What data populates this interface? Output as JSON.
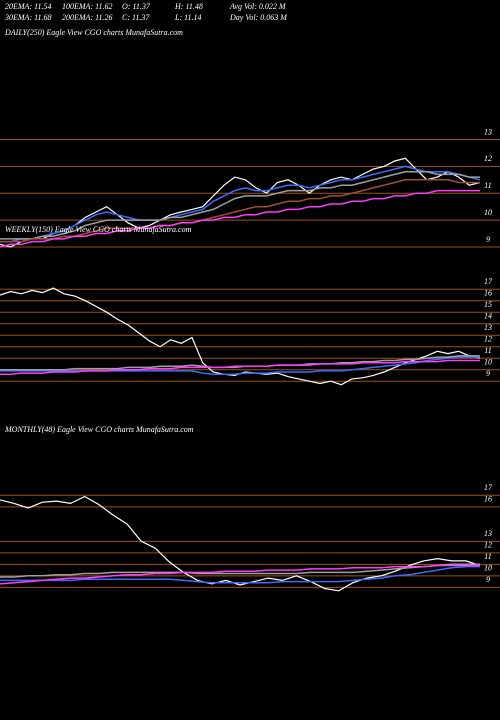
{
  "header": {
    "rows": [
      [
        "20EMA: 11.54",
        "100EMA: 11.62",
        "O: 11.37",
        "H: 11.48",
        "Avg Vol: 0.022  M"
      ],
      [
        "30EMA: 11.68",
        "200EMA: 11.26",
        "C: 11.37",
        "L: 11.14",
        "Day Vol: 0.063  M"
      ]
    ]
  },
  "chart_data": [
    {
      "type": "line",
      "title": "DAILY(250) Eagle  View  CGO charts MunafaSutra.com",
      "ylim": [
        8.7,
        14.1
      ],
      "yticks": [
        13,
        12,
        11,
        10,
        9
      ],
      "grid": true,
      "grid_color": "#9a5218",
      "series": [
        {
          "color": "#ffffff",
          "values": [
            9.1,
            9.0,
            9.2,
            9.3,
            9.3,
            9.5,
            9.6,
            9.8,
            10.1,
            10.3,
            10.5,
            10.2,
            9.9,
            9.7,
            9.8,
            10.0,
            10.2,
            10.3,
            10.4,
            10.5,
            10.9,
            11.3,
            11.6,
            11.5,
            11.2,
            11.0,
            11.4,
            11.5,
            11.3,
            11.0,
            11.3,
            11.5,
            11.6,
            11.5,
            11.7,
            11.9,
            12.0,
            12.2,
            12.3,
            11.9,
            11.5,
            11.6,
            11.8,
            11.6,
            11.3,
            11.4
          ]
        },
        {
          "color": "#3a6cff",
          "values": [
            9.2,
            9.2,
            9.3,
            9.3,
            9.4,
            9.5,
            9.6,
            9.8,
            10.0,
            10.2,
            10.3,
            10.2,
            10.1,
            10.0,
            10.0,
            10.0,
            10.1,
            10.2,
            10.3,
            10.4,
            10.7,
            10.9,
            11.1,
            11.2,
            11.1,
            11.1,
            11.2,
            11.3,
            11.3,
            11.2,
            11.3,
            11.4,
            11.5,
            11.5,
            11.6,
            11.7,
            11.8,
            11.9,
            12.0,
            11.9,
            11.8,
            11.8,
            11.8,
            11.7,
            11.6,
            11.5
          ]
        },
        {
          "color": "#a0a0a0",
          "values": [
            9.3,
            9.3,
            9.3,
            9.3,
            9.4,
            9.4,
            9.5,
            9.6,
            9.8,
            9.9,
            10.0,
            10.0,
            10.0,
            10.0,
            10.0,
            10.0,
            10.1,
            10.1,
            10.2,
            10.3,
            10.4,
            10.6,
            10.8,
            10.9,
            10.9,
            10.9,
            11.0,
            11.1,
            11.1,
            11.1,
            11.2,
            11.2,
            11.3,
            11.3,
            11.4,
            11.5,
            11.6,
            11.7,
            11.8,
            11.8,
            11.8,
            11.7,
            11.7,
            11.7,
            11.6,
            11.6
          ]
        },
        {
          "color": "#a05030",
          "values": [
            9.2,
            9.2,
            9.2,
            9.3,
            9.3,
            9.3,
            9.4,
            9.4,
            9.5,
            9.6,
            9.7,
            9.7,
            9.7,
            9.7,
            9.7,
            9.8,
            9.8,
            9.9,
            9.9,
            10.0,
            10.1,
            10.2,
            10.3,
            10.4,
            10.5,
            10.5,
            10.6,
            10.7,
            10.7,
            10.8,
            10.8,
            10.9,
            10.9,
            11.0,
            11.1,
            11.2,
            11.3,
            11.4,
            11.5,
            11.5,
            11.5,
            11.5,
            11.5,
            11.4,
            11.4,
            11.4
          ]
        },
        {
          "color": "#ff3cff",
          "values": [
            9.0,
            9.1,
            9.1,
            9.2,
            9.2,
            9.3,
            9.3,
            9.4,
            9.4,
            9.5,
            9.5,
            9.6,
            9.6,
            9.7,
            9.7,
            9.8,
            9.8,
            9.9,
            9.9,
            10.0,
            10.0,
            10.1,
            10.1,
            10.2,
            10.2,
            10.3,
            10.3,
            10.4,
            10.4,
            10.5,
            10.5,
            10.6,
            10.6,
            10.7,
            10.7,
            10.8,
            10.8,
            10.9,
            10.9,
            11.0,
            11.0,
            11.1,
            11.1,
            11.1,
            11.1,
            11.1
          ]
        }
      ]
    },
    {
      "type": "line",
      "title": "WEEKLY(150) Eagle  View  CGO charts MunafaSutra.com",
      "ylim": [
        7.8,
        17.8
      ],
      "yticks": [
        17,
        16,
        15,
        14,
        13,
        12,
        11,
        10,
        9
      ],
      "grid": true,
      "grid_color": "#9a5218",
      "series": [
        {
          "color": "#ffffff",
          "values": [
            16.5,
            16.8,
            16.6,
            16.9,
            16.7,
            17.1,
            16.6,
            16.4,
            16.0,
            15.5,
            15.0,
            14.4,
            13.9,
            13.2,
            12.5,
            12.0,
            12.6,
            12.3,
            12.8,
            10.6,
            9.8,
            9.6,
            9.5,
            9.8,
            9.7,
            9.6,
            9.7,
            9.4,
            9.2,
            9.0,
            8.8,
            9.0,
            8.7,
            9.2,
            9.3,
            9.5,
            9.8,
            10.2,
            10.6,
            10.9,
            11.2,
            11.6,
            11.4,
            11.6,
            11.2,
            11.0
          ]
        },
        {
          "color": "#3a6cff",
          "values": [
            9.9,
            9.9,
            9.9,
            9.9,
            9.9,
            9.9,
            9.9,
            9.9,
            9.9,
            9.9,
            9.9,
            9.9,
            9.9,
            9.9,
            9.9,
            9.9,
            9.9,
            9.9,
            9.9,
            9.7,
            9.6,
            9.6,
            9.6,
            9.7,
            9.7,
            9.7,
            9.8,
            9.8,
            9.8,
            9.8,
            9.9,
            9.9,
            9.9,
            10.0,
            10.1,
            10.2,
            10.3,
            10.4,
            10.5,
            10.6,
            10.8,
            10.9,
            11.0,
            11.1,
            11.1,
            11.1
          ]
        },
        {
          "color": "#a0a0a0",
          "values": [
            10.0,
            10.0,
            10.0,
            10.0,
            10.0,
            10.0,
            10.0,
            10.1,
            10.1,
            10.1,
            10.1,
            10.1,
            10.2,
            10.2,
            10.2,
            10.3,
            10.3,
            10.3,
            10.4,
            10.3,
            10.2,
            10.2,
            10.2,
            10.3,
            10.3,
            10.3,
            10.4,
            10.4,
            10.4,
            10.5,
            10.5,
            10.5,
            10.6,
            10.6,
            10.7,
            10.7,
            10.8,
            10.8,
            10.9,
            10.9,
            11.0,
            11.1,
            11.1,
            11.2,
            11.2,
            11.2
          ]
        },
        {
          "color": "#ff3cff",
          "values": [
            9.6,
            9.6,
            9.7,
            9.7,
            9.7,
            9.8,
            9.8,
            9.8,
            9.9,
            9.9,
            9.9,
            10.0,
            10.0,
            10.0,
            10.1,
            10.1,
            10.1,
            10.2,
            10.2,
            10.2,
            10.2,
            10.2,
            10.3,
            10.3,
            10.3,
            10.3,
            10.4,
            10.4,
            10.4,
            10.4,
            10.5,
            10.5,
            10.5,
            10.5,
            10.6,
            10.6,
            10.6,
            10.6,
            10.7,
            10.7,
            10.7,
            10.7,
            10.8,
            10.8,
            10.8,
            10.8
          ]
        }
      ]
    },
    {
      "type": "line",
      "title": "MONTHLY(48) Eagle  View  CGO charts MunafaSutra.com",
      "ylim": [
        7.9,
        19.2
      ],
      "yticks": [
        17,
        16,
        13,
        12,
        11,
        10,
        9
      ],
      "grid": true,
      "grid_color": "#9a5218",
      "series": [
        {
          "color": "#ffffff",
          "values": [
            16.6,
            16.3,
            15.9,
            16.4,
            16.5,
            16.3,
            16.9,
            16.2,
            15.3,
            14.5,
            13.0,
            12.4,
            11.2,
            10.3,
            9.6,
            9.3,
            9.6,
            9.2,
            9.5,
            9.8,
            9.6,
            10.0,
            9.5,
            8.9,
            8.7,
            9.4,
            9.8,
            10.0,
            10.4,
            10.9,
            11.3,
            11.5,
            11.3,
            11.3,
            10.9
          ]
        },
        {
          "color": "#3a6cff",
          "values": [
            9.6,
            9.6,
            9.6,
            9.6,
            9.6,
            9.6,
            9.7,
            9.7,
            9.7,
            9.7,
            9.7,
            9.7,
            9.7,
            9.6,
            9.5,
            9.4,
            9.4,
            9.4,
            9.4,
            9.4,
            9.5,
            9.5,
            9.5,
            9.5,
            9.5,
            9.6,
            9.7,
            9.8,
            10.0,
            10.1,
            10.3,
            10.5,
            10.7,
            10.8,
            10.8
          ]
        },
        {
          "color": "#a0a0a0",
          "values": [
            9.9,
            9.9,
            10.0,
            10.0,
            10.1,
            10.1,
            10.2,
            10.2,
            10.3,
            10.3,
            10.3,
            10.3,
            10.3,
            10.3,
            10.2,
            10.2,
            10.2,
            10.2,
            10.2,
            10.2,
            10.2,
            10.2,
            10.3,
            10.3,
            10.3,
            10.3,
            10.4,
            10.5,
            10.6,
            10.7,
            10.8,
            10.9,
            11.0,
            11.0,
            11.0
          ]
        },
        {
          "color": "#ff3cff",
          "values": [
            9.3,
            9.4,
            9.5,
            9.6,
            9.7,
            9.8,
            9.8,
            9.9,
            10.0,
            10.1,
            10.1,
            10.2,
            10.2,
            10.3,
            10.3,
            10.3,
            10.4,
            10.4,
            10.4,
            10.5,
            10.5,
            10.5,
            10.6,
            10.6,
            10.6,
            10.7,
            10.7,
            10.7,
            10.8,
            10.8,
            10.8,
            10.9,
            10.9,
            10.9,
            10.9
          ]
        }
      ]
    }
  ]
}
